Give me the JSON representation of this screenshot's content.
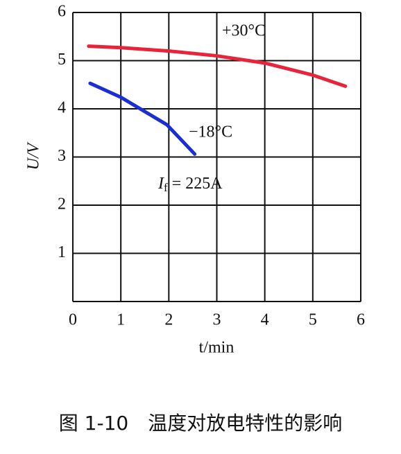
{
  "chart_data": {
    "type": "line",
    "x_label": "t/min",
    "y_label": "U/V",
    "xlim": [
      0,
      6
    ],
    "ylim": [
      0,
      6
    ],
    "xticks": [
      0,
      1,
      2,
      3,
      4,
      5,
      6
    ],
    "yticks": [
      1,
      2,
      3,
      4,
      5,
      6
    ],
    "grid": true,
    "series": [
      {
        "name": "+30°C",
        "color": "#e8243a",
        "x": [
          0.33,
          1,
          2,
          3,
          4,
          5,
          5.68
        ],
        "values": [
          5.3,
          5.27,
          5.2,
          5.1,
          4.95,
          4.7,
          4.47
        ]
      },
      {
        "name": "−18°C",
        "color": "#1a2ed6",
        "x": [
          0.36,
          1,
          1.96,
          2.54
        ],
        "values": [
          4.53,
          4.24,
          3.67,
          3.06
        ]
      }
    ],
    "annotation": {
      "base": "I",
      "sub": "f",
      "text": " = 225A"
    },
    "caption": "图 1-10　温度对放电特性的影响"
  }
}
